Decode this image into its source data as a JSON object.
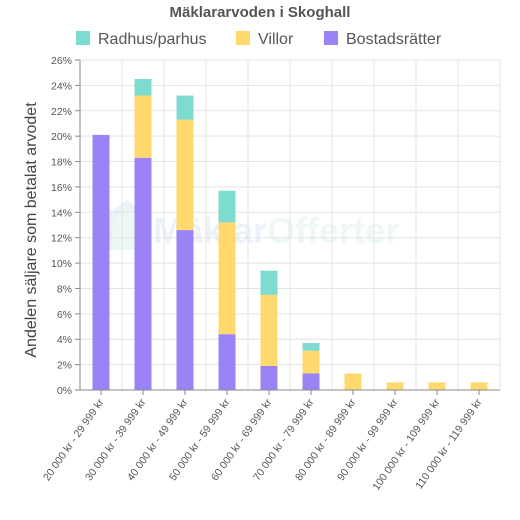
{
  "chart_data": {
    "type": "bar",
    "stacked": true,
    "title": "Mäklararvoden i Skoghall",
    "xlabel": "",
    "ylabel": "Andelen säljare som betalat arvodet",
    "ylim": [
      0,
      26
    ],
    "ytick_step": 2,
    "y_unit": "%",
    "grid": true,
    "legend_position": "top",
    "categories": [
      "20 000 kr - 29 999 kr",
      "30 000 kr - 39 999 kr",
      "40 000 kr - 49 999 kr",
      "50 000 kr - 59 999 kr",
      "60 000 kr - 69 999 kr",
      "70 000 kr - 79 999 kr",
      "80 000 kr - 89 999 kr",
      "90 000 kr - 99 999 kr",
      "100 000 kr - 109 999 kr",
      "110 000 kr - 119 999 kr"
    ],
    "series": [
      {
        "name": "Bostadsrätter",
        "color": "#9b83f5",
        "values": [
          20.1,
          18.3,
          12.6,
          4.4,
          1.9,
          1.3,
          0,
          0,
          0,
          0
        ]
      },
      {
        "name": "Villor",
        "color": "#ffd86e",
        "values": [
          0,
          4.9,
          8.7,
          8.8,
          5.6,
          1.8,
          1.3,
          0.6,
          0.6,
          0.6
        ]
      },
      {
        "name": "Radhus/parhus",
        "color": "#7edbd0",
        "values": [
          0,
          1.3,
          1.9,
          2.5,
          1.9,
          0.6,
          0,
          0,
          0,
          0
        ]
      }
    ],
    "legend_order": [
      "Radhus/parhus",
      "Villor",
      "Bostadsrätter"
    ]
  },
  "watermark": {
    "text_left": "Mäklar",
    "text_right": "Offerter",
    "color_left": "#5b8fd6",
    "color_right": "#6cc79a"
  }
}
